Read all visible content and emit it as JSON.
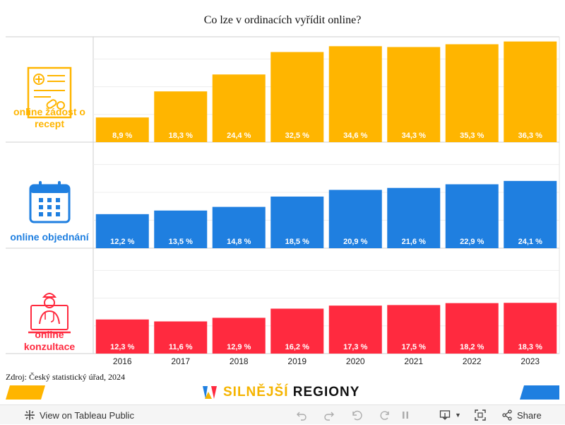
{
  "chart_data": {
    "type": "bar",
    "title": "Co lze v ordinacích vyřídit online?",
    "categories": [
      "2016",
      "2017",
      "2018",
      "2019",
      "2020",
      "2021",
      "2022",
      "2023"
    ],
    "series": [
      {
        "name": "online žádost o recept",
        "color": "#FFB500",
        "icon": "prescription-icon",
        "values": [
          8.9,
          18.3,
          24.4,
          32.5,
          34.6,
          34.3,
          35.3,
          36.3
        ],
        "labels": [
          "8,9 %",
          "18,3 %",
          "24,4 %",
          "32,5 %",
          "34,6 %",
          "34,3 %",
          "35,3 %",
          "36,3 %"
        ]
      },
      {
        "name": "online objednání",
        "color": "#1F7FE0",
        "icon": "calendar-icon",
        "values": [
          12.2,
          13.5,
          14.8,
          18.5,
          20.9,
          21.6,
          22.9,
          24.1
        ],
        "labels": [
          "12,2 %",
          "13,5 %",
          "14,8 %",
          "18,5 %",
          "20,9 %",
          "21,6 %",
          "22,9 %",
          "24,1 %"
        ]
      },
      {
        "name": "online konzultace",
        "color": "#FF2A3F",
        "icon": "doctor-laptop-icon",
        "values": [
          12.3,
          11.6,
          12.9,
          16.2,
          17.3,
          17.5,
          18.2,
          18.3
        ],
        "labels": [
          "12,3 %",
          "11,6 %",
          "12,9 %",
          "16,2 %",
          "17,3 %",
          "17,5 %",
          "18,2 %",
          "18,3 %"
        ]
      }
    ],
    "ylim": [
      0,
      38
    ],
    "grid": true
  },
  "source": "Zdroj: Český statistický úřad, 2024",
  "brand": {
    "word1": "SILNĚJŠÍ",
    "word2": "REGIONY",
    "colors": {
      "yellow": "#F5B400",
      "blue": "#1F7FE0",
      "red": "#FF2A3F",
      "dark": "#111111"
    }
  },
  "toolbar": {
    "view_label": "View on Tableau Public",
    "share_label": "Share"
  }
}
